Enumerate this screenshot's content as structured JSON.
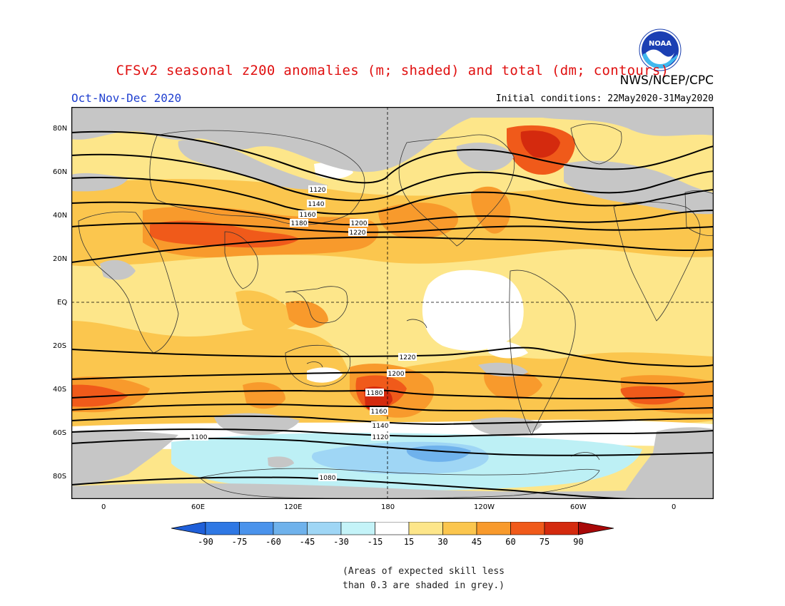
{
  "header": {
    "title": "CFSv2 seasonal z200 anomalies (m; shaded) and total (dm; contours)",
    "agency": "NWS/NCEP/CPC",
    "season": "Oct-Nov-Dec 2020",
    "initial_conditions": "Initial conditions: 22May2020-31May2020",
    "logo_text": "NOAA"
  },
  "map": {
    "lat_labels": [
      "80N",
      "60N",
      "40N",
      "20N",
      "EQ",
      "20S",
      "40S",
      "60S",
      "80S"
    ],
    "lon_labels": [
      "0",
      "60E",
      "120E",
      "180",
      "120W",
      "60W",
      "0"
    ],
    "colors": {
      "grey_low_skill": "#c6c6c6",
      "white": "#ffffff",
      "pos15": "#fde68a",
      "pos30": "#fbc64e",
      "pos45": "#f89a2c",
      "pos60": "#f05a1a",
      "pos75": "#d42a0e",
      "neg15": "#bdf0f5",
      "neg30": "#9fd6f5",
      "neg45": "#6fb2ec"
    },
    "contour_labels": [
      "1120",
      "1140",
      "1160",
      "1180",
      "1200",
      "1220",
      "1220",
      "1200",
      "1180",
      "1160",
      "1140",
      "1120",
      "1100",
      "1080"
    ]
  },
  "colorbar": {
    "ticks": [
      "-90",
      "-75",
      "-60",
      "-45",
      "-30",
      "-15",
      "15",
      "30",
      "45",
      "60",
      "75",
      "90"
    ],
    "colors": [
      "#1f5fd9",
      "#2f78e4",
      "#4a93ec",
      "#6fb2ec",
      "#9fd6f5",
      "#c4f3f8",
      "#ffffff",
      "#fde68a",
      "#fbc64e",
      "#f89a2c",
      "#f05a1a",
      "#d42a0e",
      "#a80808"
    ]
  },
  "note": {
    "line1": "(Areas of expected skill less",
    "line2": "than 0.3 are shaded in grey.)"
  }
}
